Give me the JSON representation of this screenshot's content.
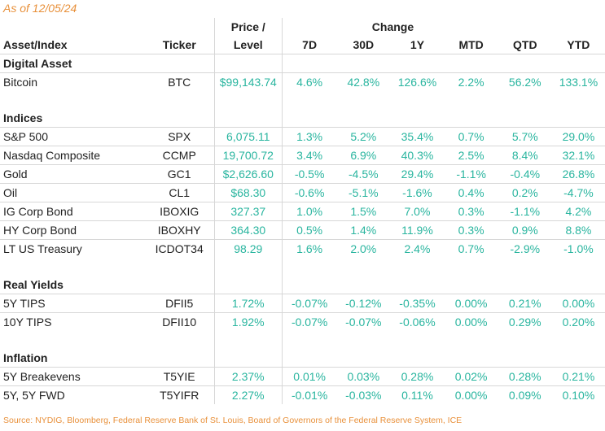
{
  "as_of": "As of 12/05/24",
  "headers": {
    "asset": "Asset/Index",
    "ticker": "Ticker",
    "price_line1": "Price /",
    "price_line2": "Level",
    "change": "Change",
    "cols": [
      "7D",
      "30D",
      "1Y",
      "MTD",
      "QTD",
      "YTD"
    ]
  },
  "sections": [
    {
      "name": "Digital Asset",
      "rows": [
        {
          "asset": "Bitcoin",
          "ticker": "BTC",
          "price": "$99,143.74",
          "changes": [
            "4.6%",
            "42.8%",
            "126.6%",
            "2.2%",
            "56.2%",
            "133.1%"
          ]
        }
      ]
    },
    {
      "name": "Indices",
      "rows": [
        {
          "asset": "S&P 500",
          "ticker": "SPX",
          "price": "6,075.11",
          "changes": [
            "1.3%",
            "5.2%",
            "35.4%",
            "0.7%",
            "5.7%",
            "29.0%"
          ]
        },
        {
          "asset": "Nasdaq Composite",
          "ticker": "CCMP",
          "price": "19,700.72",
          "changes": [
            "3.4%",
            "6.9%",
            "40.3%",
            "2.5%",
            "8.4%",
            "32.1%"
          ]
        },
        {
          "asset": "Gold",
          "ticker": "GC1",
          "price": "$2,626.60",
          "changes": [
            "-0.5%",
            "-4.5%",
            "29.4%",
            "-1.1%",
            "-0.4%",
            "26.8%"
          ]
        },
        {
          "asset": "Oil",
          "ticker": "CL1",
          "price": "$68.30",
          "changes": [
            "-0.6%",
            "-5.1%",
            "-1.6%",
            "0.4%",
            "0.2%",
            "-4.7%"
          ]
        },
        {
          "asset": "IG Corp Bond",
          "ticker": "IBOXIG",
          "price": "327.37",
          "changes": [
            "1.0%",
            "1.5%",
            "7.0%",
            "0.3%",
            "-1.1%",
            "4.2%"
          ]
        },
        {
          "asset": "HY Corp Bond",
          "ticker": "IBOXHY",
          "price": "364.30",
          "changes": [
            "0.5%",
            "1.4%",
            "11.9%",
            "0.3%",
            "0.9%",
            "8.8%"
          ]
        },
        {
          "asset": "LT US Treasury",
          "ticker": "ICDOT34",
          "price": "98.29",
          "changes": [
            "1.6%",
            "2.0%",
            "2.4%",
            "0.7%",
            "-2.9%",
            "-1.0%"
          ]
        }
      ]
    },
    {
      "name": "Real Yields",
      "rows": [
        {
          "asset": "5Y TIPS",
          "ticker": "DFII5",
          "price": "1.72%",
          "changes": [
            "-0.07%",
            "-0.12%",
            "-0.35%",
            "0.00%",
            "0.21%",
            "0.00%"
          ]
        },
        {
          "asset": "10Y TIPS",
          "ticker": "DFII10",
          "price": "1.92%",
          "changes": [
            "-0.07%",
            "-0.07%",
            "-0.06%",
            "0.00%",
            "0.29%",
            "0.20%"
          ]
        }
      ]
    },
    {
      "name": "Inflation",
      "rows": [
        {
          "asset": "5Y Breakevens",
          "ticker": "T5YIE",
          "price": "2.37%",
          "changes": [
            "0.01%",
            "0.03%",
            "0.28%",
            "0.02%",
            "0.28%",
            "0.21%"
          ]
        },
        {
          "asset": "5Y, 5Y FWD",
          "ticker": "T5YIFR",
          "price": "2.27%",
          "changes": [
            "-0.01%",
            "-0.03%",
            "0.11%",
            "0.00%",
            "0.09%",
            "0.10%"
          ]
        }
      ]
    }
  ],
  "source": "Source: NYDIG, Bloomberg, Federal Reserve Bank of St. Louis, Board of Governors of the Federal Reserve System, ICE",
  "colors": {
    "accent": "#e8903a",
    "value": "#29b59f",
    "rule": "#d7d7d7"
  }
}
